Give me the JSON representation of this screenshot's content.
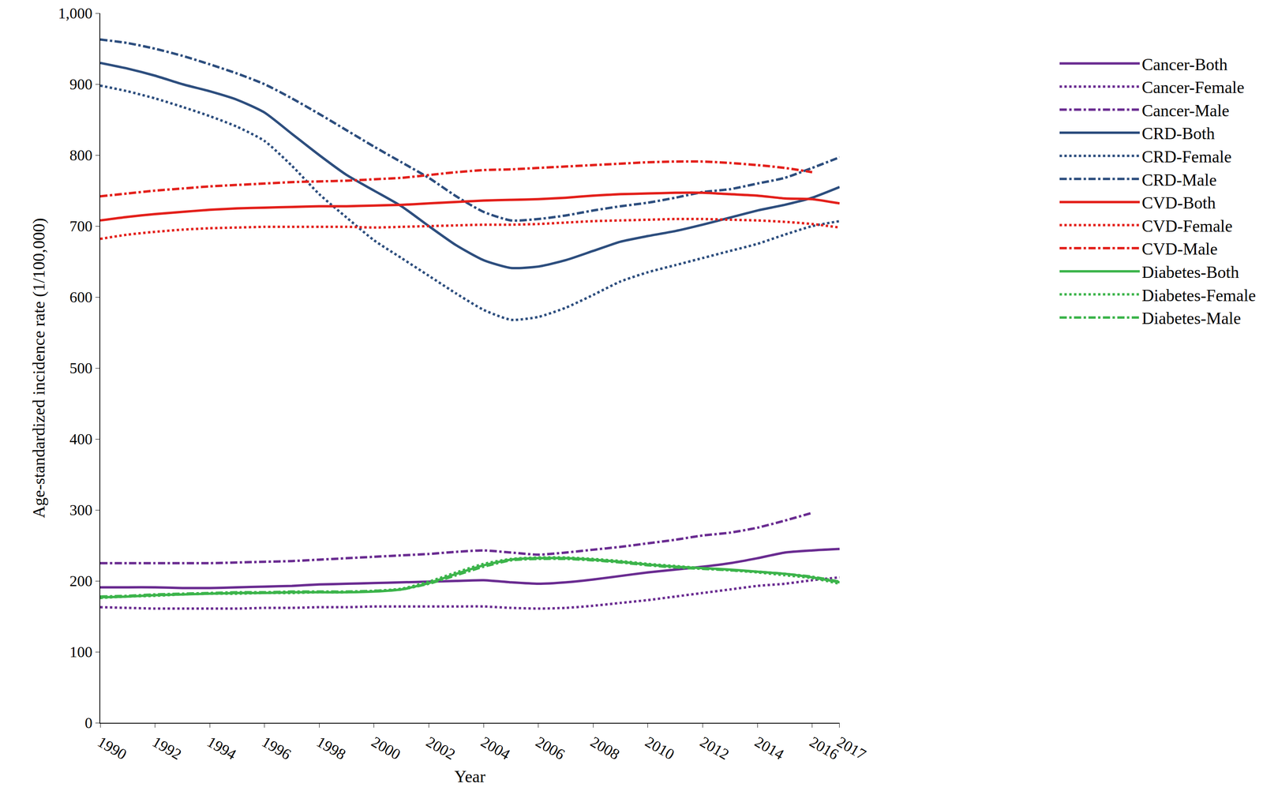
{
  "chart_data": {
    "type": "line",
    "x_label": "Year",
    "y_label": "Age-standardized incidence rate (1/100,000)",
    "x": [
      1990,
      1991,
      1992,
      1993,
      1994,
      1995,
      1996,
      1997,
      1998,
      1999,
      2000,
      2001,
      2002,
      2003,
      2004,
      2005,
      2006,
      2007,
      2008,
      2009,
      2010,
      2011,
      2012,
      2013,
      2014,
      2015,
      2016,
      2017
    ],
    "xlim": [
      1990,
      2017
    ],
    "xticks": [
      1990,
      1992,
      1994,
      1996,
      1998,
      2000,
      2002,
      2004,
      2006,
      2008,
      2010,
      2012,
      2014,
      2016,
      2017
    ],
    "ylim": [
      0,
      1000
    ],
    "yticks": [
      0,
      100,
      200,
      300,
      400,
      500,
      600,
      700,
      800,
      900,
      {
        "value": 1000,
        "label": "1,000"
      }
    ],
    "grid": false,
    "legend": "right",
    "series": [
      {
        "name": "Cancer-Both",
        "color": "#6a2c91",
        "line_style": "solid",
        "values": [
          191,
          191,
          191,
          190,
          190,
          191,
          192,
          193,
          195,
          196,
          197,
          198,
          199,
          200,
          201,
          198,
          196,
          198,
          202,
          207,
          212,
          216,
          220,
          225,
          232,
          240,
          243,
          245
        ]
      },
      {
        "name": "Cancer-Female",
        "color": "#6a2c91",
        "line_style": "dot",
        "values": [
          163,
          162,
          161,
          161,
          161,
          161,
          162,
          162,
          163,
          163,
          164,
          164,
          164,
          164,
          164,
          162,
          161,
          162,
          165,
          169,
          173,
          178,
          183,
          188,
          193,
          196,
          201,
          205
        ]
      },
      {
        "name": "Cancer-Male",
        "color": "#6a2c91",
        "line_style": "dashdot",
        "values": [
          225,
          225,
          225,
          225,
          225,
          226,
          227,
          228,
          230,
          232,
          234,
          236,
          238,
          241,
          243,
          240,
          237,
          240,
          244,
          248,
          253,
          258,
          264,
          268,
          275,
          285,
          296,
          null
        ]
      },
      {
        "name": "CRD-Both",
        "color": "#2d4e7e",
        "line_style": "solid",
        "values": [
          930,
          922,
          912,
          900,
          890,
          878,
          860,
          830,
          800,
          772,
          750,
          728,
          700,
          673,
          652,
          641,
          643,
          652,
          665,
          678,
          686,
          693,
          702,
          712,
          722,
          730,
          740,
          755
        ]
      },
      {
        "name": "CRD-Female",
        "color": "#2d4e7e",
        "line_style": "dot",
        "values": [
          898,
          890,
          880,
          868,
          855,
          840,
          820,
          785,
          745,
          712,
          680,
          655,
          630,
          605,
          582,
          568,
          572,
          585,
          603,
          622,
          635,
          645,
          655,
          665,
          675,
          688,
          700,
          707
        ]
      },
      {
        "name": "CRD-Male",
        "color": "#2d4e7e",
        "line_style": "dashdot",
        "values": [
          963,
          958,
          950,
          940,
          928,
          915,
          900,
          880,
          858,
          835,
          812,
          790,
          768,
          742,
          720,
          708,
          710,
          715,
          722,
          728,
          733,
          740,
          748,
          752,
          760,
          768,
          782,
          797
        ]
      },
      {
        "name": "CVD-Both",
        "color": "#e3201b",
        "line_style": "solid",
        "values": [
          708,
          713,
          717,
          720,
          723,
          725,
          726,
          727,
          728,
          728,
          729,
          730,
          732,
          734,
          736,
          737,
          738,
          740,
          743,
          745,
          746,
          747,
          747,
          745,
          743,
          739,
          738,
          732
        ]
      },
      {
        "name": "CVD-Female",
        "color": "#e3201b",
        "line_style": "dot",
        "values": [
          682,
          688,
          692,
          695,
          697,
          698,
          699,
          699,
          699,
          699,
          698,
          699,
          700,
          701,
          702,
          702,
          703,
          705,
          707,
          708,
          709,
          710,
          710,
          709,
          708,
          706,
          703,
          698
        ]
      },
      {
        "name": "CVD-Male",
        "color": "#e3201b",
        "line_style": "dashdot",
        "values": [
          742,
          746,
          750,
          753,
          756,
          758,
          760,
          762,
          763,
          764,
          766,
          768,
          772,
          776,
          779,
          780,
          782,
          784,
          786,
          788,
          790,
          791,
          791,
          789,
          786,
          782,
          776,
          null
        ]
      },
      {
        "name": "Diabetes-Both",
        "color": "#3cb44b",
        "line_style": "solid",
        "values": [
          177,
          178,
          180,
          181,
          182,
          183,
          183,
          184,
          184,
          184,
          185,
          188,
          197,
          210,
          222,
          230,
          232,
          232,
          230,
          227,
          223,
          220,
          218,
          216,
          213,
          210,
          205,
          198
        ]
      },
      {
        "name": "Diabetes-Female",
        "color": "#3cb44b",
        "line_style": "dot",
        "values": [
          176,
          178,
          179,
          181,
          182,
          182,
          183,
          183,
          184,
          184,
          186,
          189,
          199,
          212,
          224,
          231,
          233,
          233,
          231,
          228,
          224,
          221,
          218,
          215,
          212,
          208,
          204,
          196
        ]
      },
      {
        "name": "Diabetes-Male",
        "color": "#3cb44b",
        "line_style": "dashdot",
        "values": [
          178,
          179,
          181,
          182,
          183,
          184,
          184,
          185,
          185,
          185,
          186,
          188,
          196,
          208,
          220,
          229,
          231,
          231,
          229,
          226,
          222,
          219,
          217,
          215,
          213,
          210,
          206,
          199
        ]
      }
    ]
  }
}
